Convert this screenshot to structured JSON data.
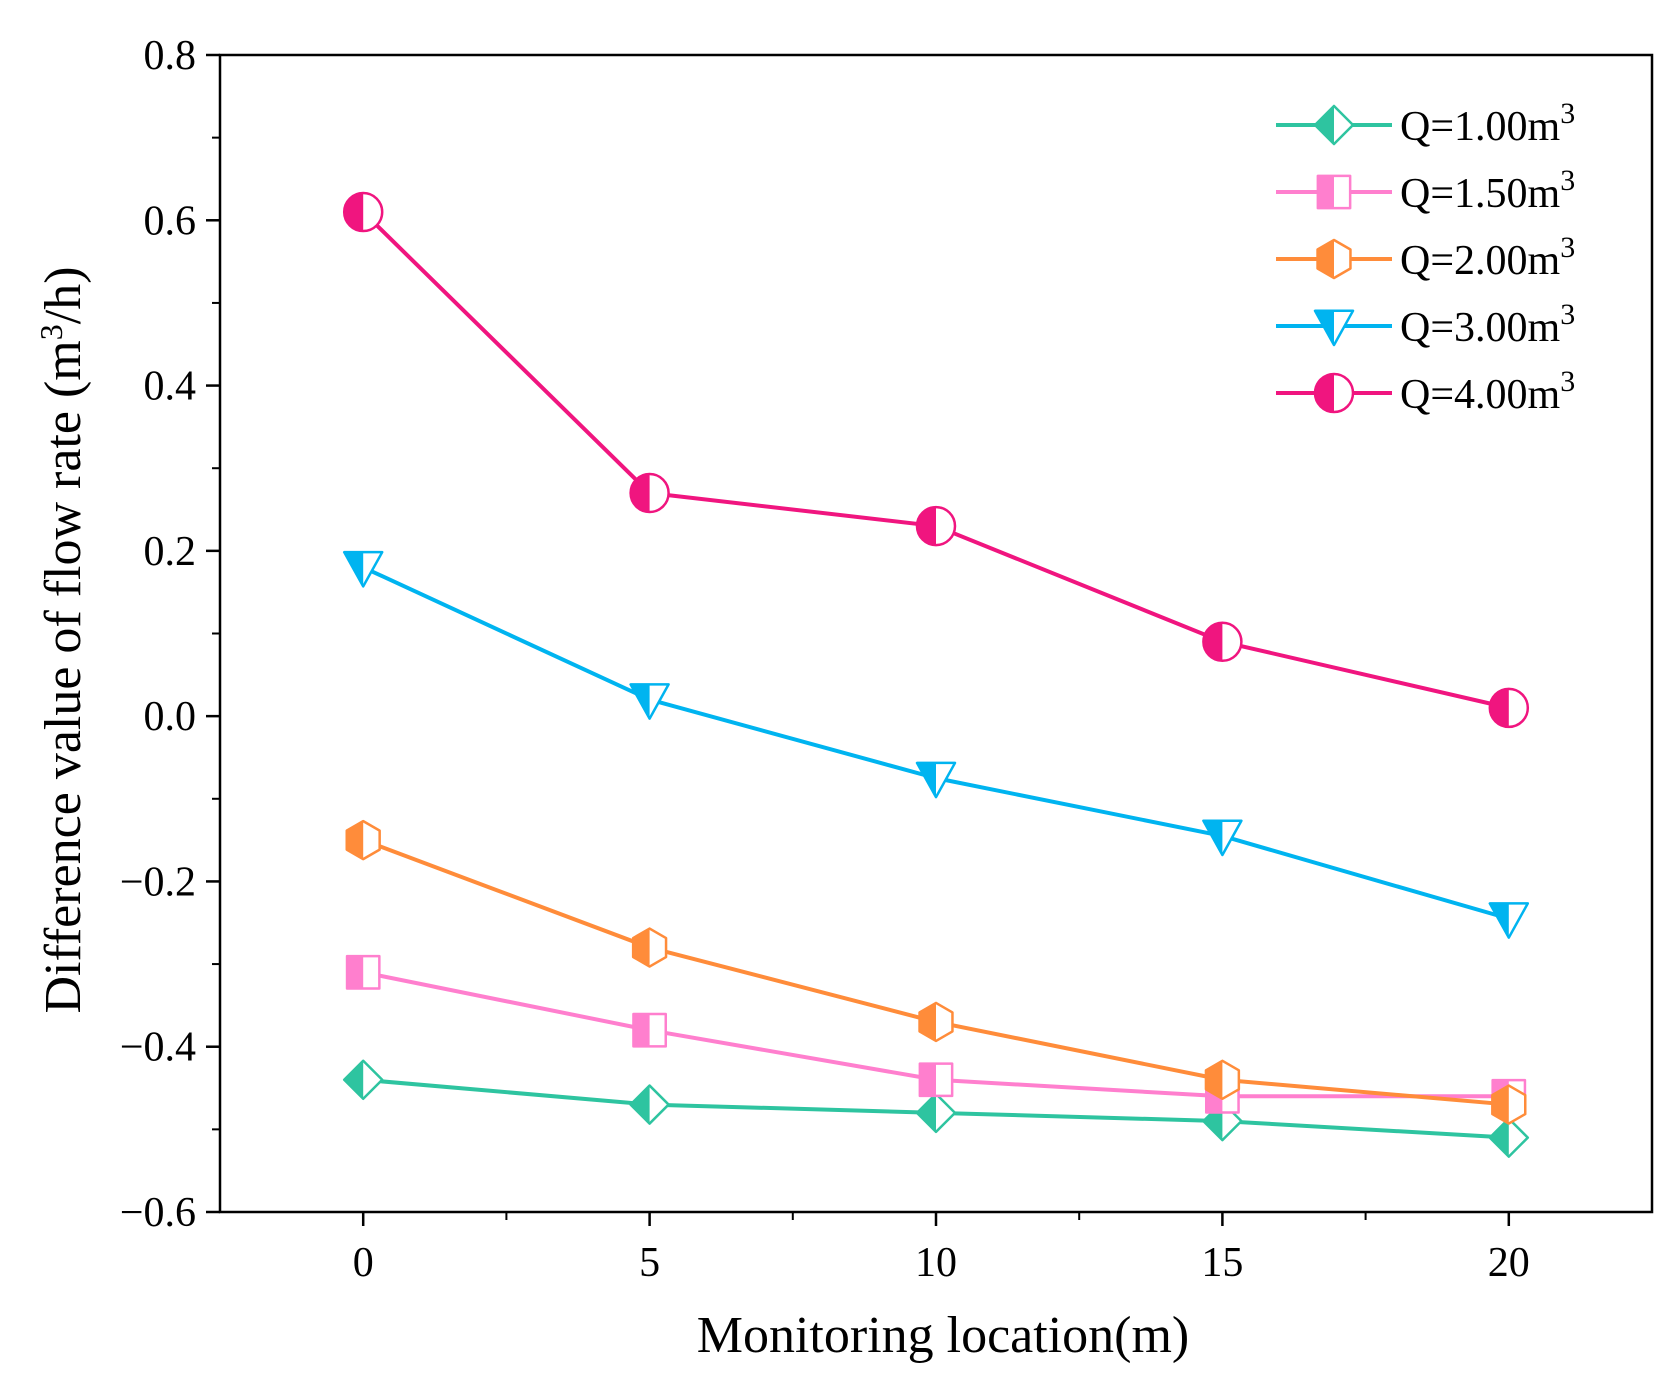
{
  "chart_data": {
    "type": "line",
    "title": "",
    "xlabel": "Monitoring location(m)",
    "ylabel": "Difference value of flow rate (m³/h)",
    "ylabel_parts": {
      "before": "Difference value of flow rate (m",
      "sup": "3",
      "after": "/h)"
    },
    "x": [
      0,
      5,
      10,
      15,
      20
    ],
    "xticks": [
      0,
      5,
      10,
      15,
      20
    ],
    "xtick_labels": [
      "0",
      "5",
      "10",
      "15",
      "20"
    ],
    "xlim": [
      -2.5,
      22.5
    ],
    "yticks": [
      -0.6,
      -0.4,
      -0.2,
      0.0,
      0.2,
      0.4,
      0.6,
      0.8
    ],
    "ytick_labels": [
      "−0.6",
      "−0.4",
      "−0.2",
      "0.0",
      "0.2",
      "0.4",
      "0.6",
      "0.8"
    ],
    "ylim": [
      -0.6,
      0.8
    ],
    "grid": false,
    "legend_position": "top-right",
    "series": [
      {
        "name": "Q=1.00m3",
        "label_main": "Q=1.00m",
        "label_sup": "3",
        "color": "#2ec4a0",
        "marker": "diamond",
        "values": [
          -0.44,
          -0.47,
          -0.48,
          -0.49,
          -0.51
        ]
      },
      {
        "name": "Q=1.50m3",
        "label_main": "Q=1.50m",
        "label_sup": "3",
        "color": "#ff7fce",
        "marker": "square",
        "values": [
          -0.31,
          -0.38,
          -0.44,
          -0.46,
          -0.46
        ]
      },
      {
        "name": "Q=2.00m3",
        "label_main": "Q=2.00m",
        "label_sup": "3",
        "color": "#ff8c3a",
        "marker": "hexagon",
        "values": [
          -0.15,
          -0.28,
          -0.37,
          -0.44,
          -0.47
        ]
      },
      {
        "name": "Q=3.00m3",
        "label_main": "Q=3.00m",
        "label_sup": "3",
        "color": "#00b4f0",
        "marker": "triangle-down",
        "values": [
          0.18,
          0.02,
          -0.075,
          -0.145,
          -0.245
        ]
      },
      {
        "name": "Q=4.00m3",
        "label_main": "Q=4.00m",
        "label_sup": "3",
        "color": "#f0157f",
        "marker": "circle",
        "values": [
          0.61,
          0.27,
          0.23,
          0.09,
          0.01
        ]
      }
    ]
  }
}
